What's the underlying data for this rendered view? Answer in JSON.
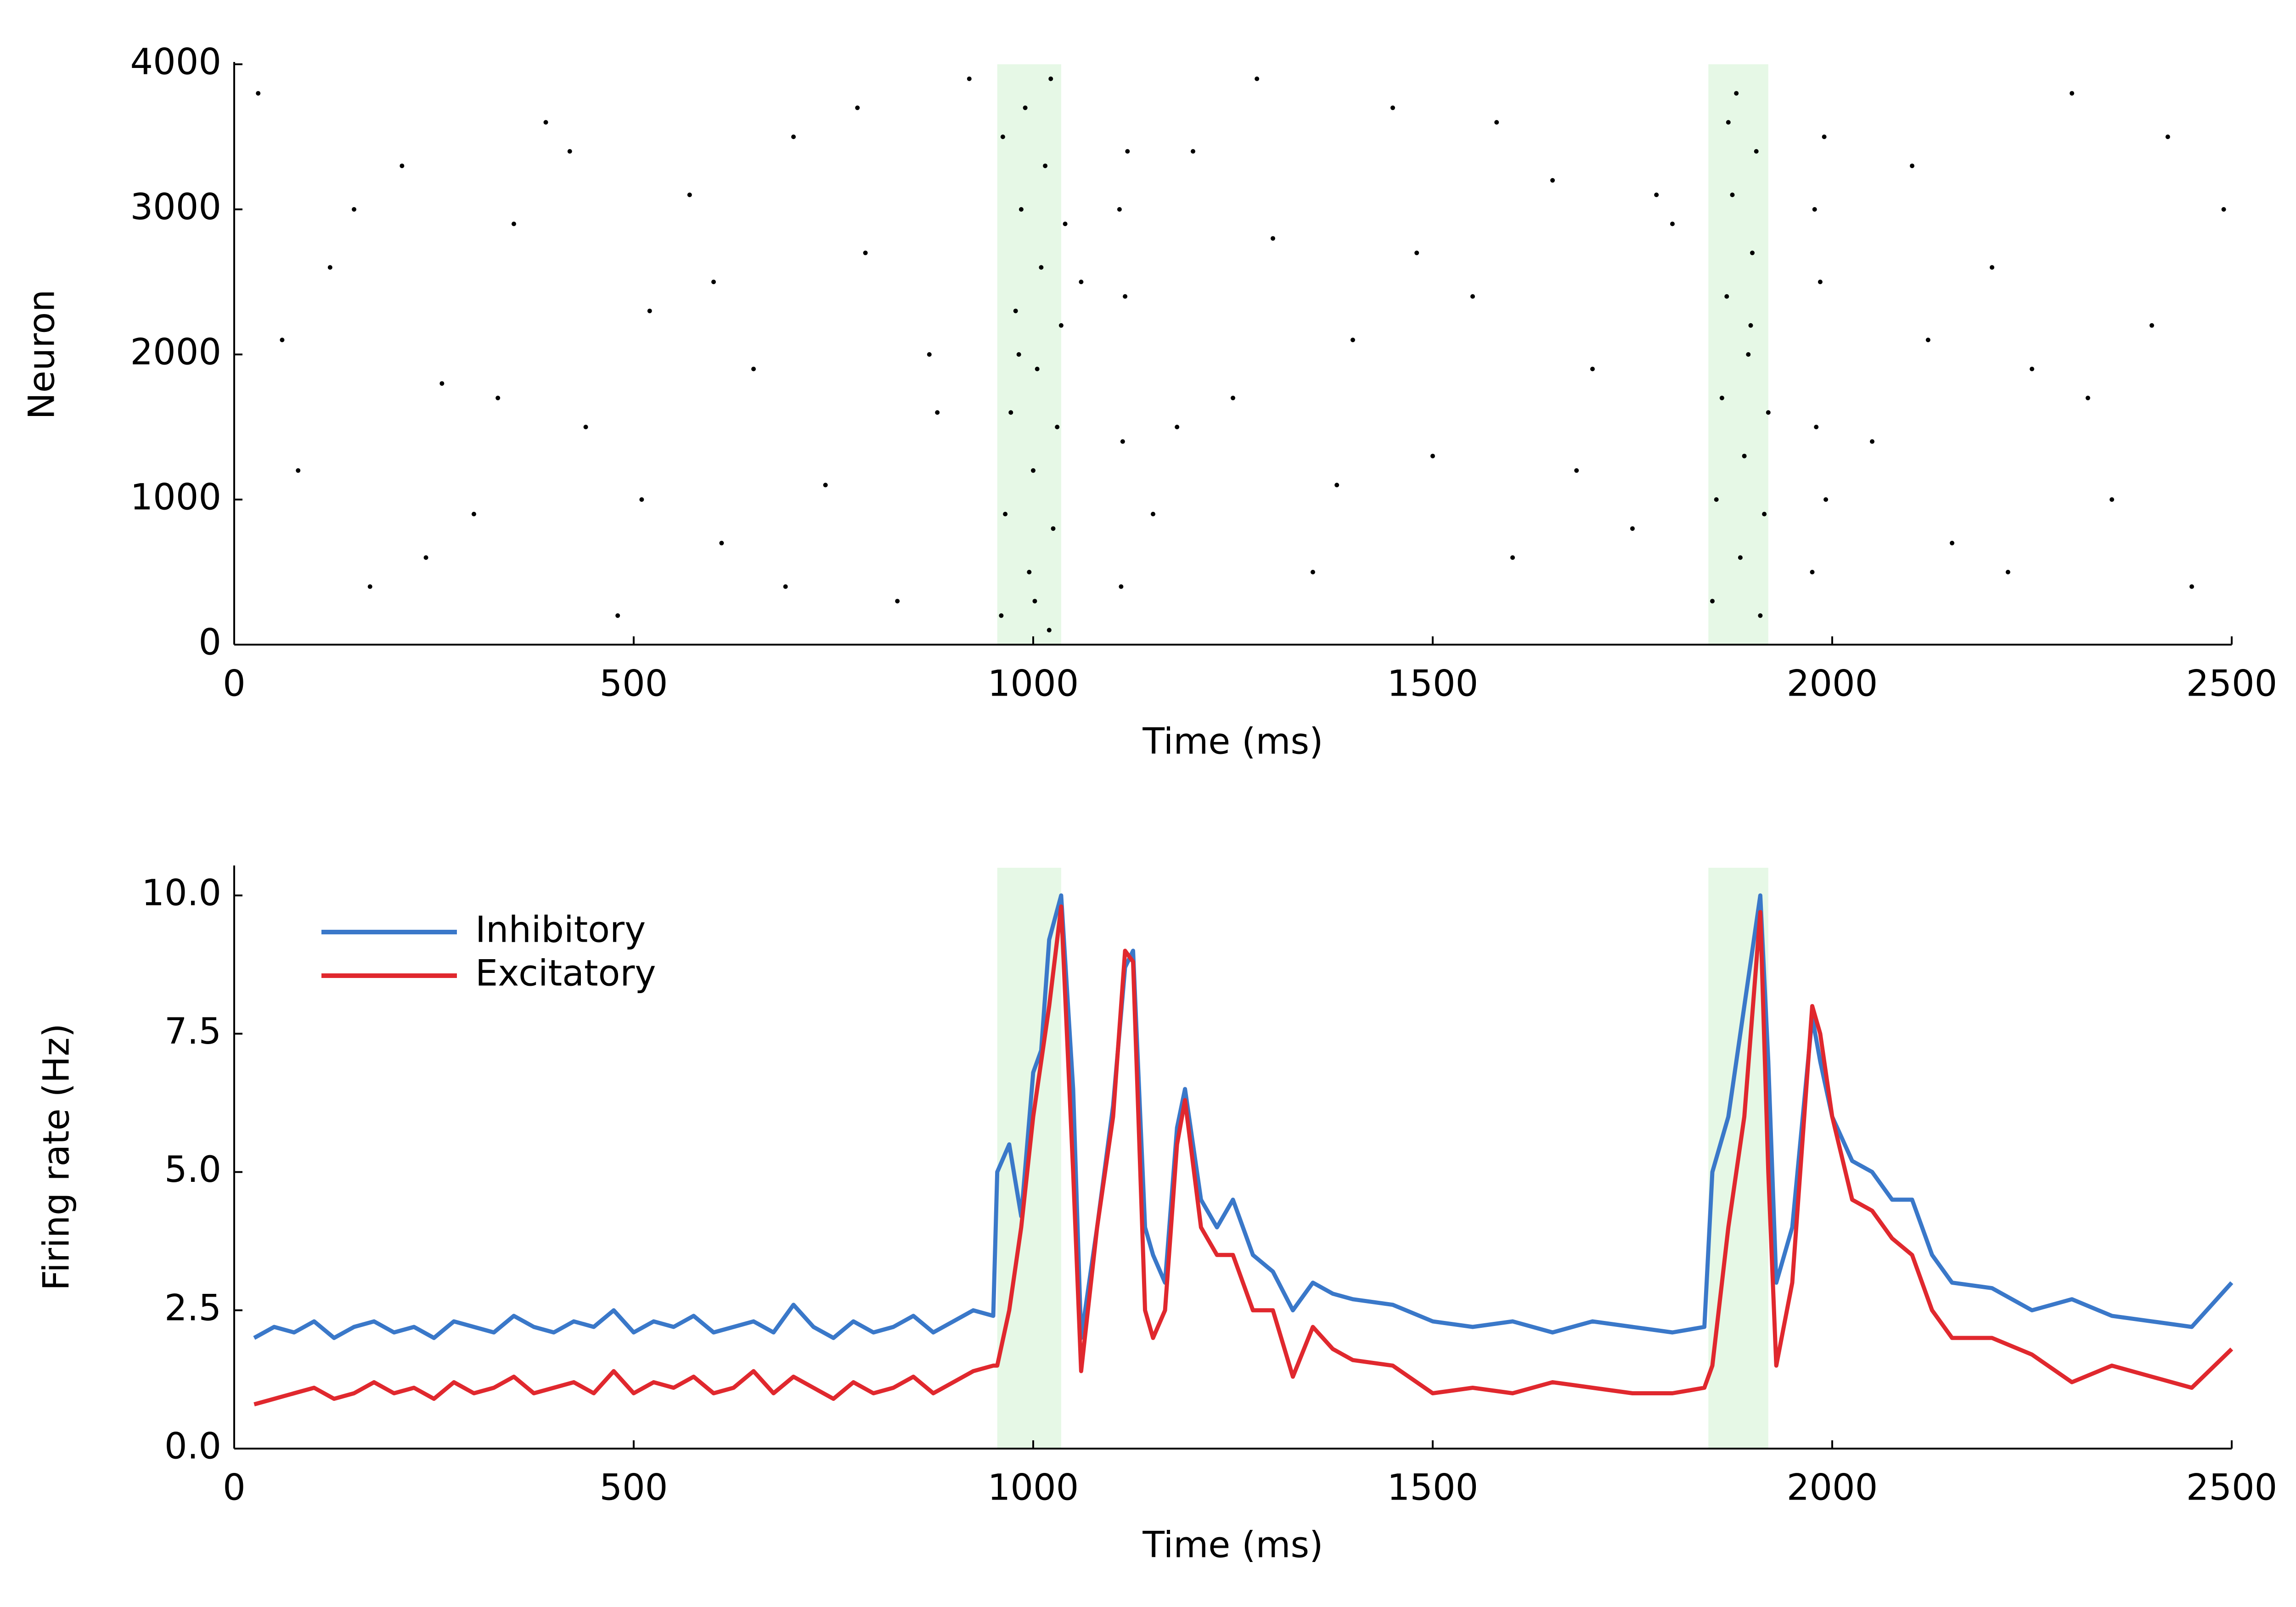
{
  "chart_data": [
    {
      "type": "scatter",
      "xlabel": "Time (ms)",
      "ylabel": "Neuron",
      "color": "#000000",
      "xlim": [
        0,
        2500
      ],
      "ylim": [
        0,
        4000
      ],
      "xticks": [
        0,
        500,
        1000,
        1500,
        2000,
        2500
      ],
      "yticks": [
        0,
        1000,
        2000,
        3000,
        4000
      ],
      "highlight_spans": [
        [
          955,
          1035
        ],
        [
          1845,
          1920
        ]
      ],
      "highlight_color": "#e6f8e6",
      "x": [
        30,
        80,
        120,
        170,
        210,
        260,
        300,
        350,
        390,
        440,
        480,
        520,
        570,
        610,
        650,
        700,
        740,
        790,
        830,
        880,
        920,
        1060,
        1150,
        1200,
        1250,
        1300,
        1350,
        1400,
        1450,
        1500,
        1550,
        1600,
        1650,
        1700,
        1750,
        1800,
        2050,
        2100,
        2150,
        2200,
        2250,
        2300,
        2350,
        2400,
        2450,
        2490,
        60,
        150,
        240,
        330,
        420,
        510,
        600,
        690,
        780,
        870,
        1180,
        1280,
        1380,
        1480,
        1580,
        1680,
        1780,
        2120,
        2220,
        2320,
        2420,
        960,
        965,
        972,
        978,
        985,
        990,
        995,
        1000,
        1005,
        1010,
        1015,
        1020,
        1025,
        1030,
        1035,
        1040,
        962,
        982,
        1002,
        1022,
        1110,
        1112,
        1115,
        1118,
        1108,
        1850,
        1855,
        1862,
        1868,
        1875,
        1880,
        1885,
        1890,
        1895,
        1900,
        1905,
        1910,
        1915,
        1920,
        1870,
        1898,
        1975,
        1980,
        1985,
        1990,
        1978,
        1992
      ],
      "y": [
        3800,
        1200,
        2600,
        400,
        3300,
        1800,
        900,
        2900,
        3600,
        1500,
        200,
        2300,
        3100,
        700,
        1900,
        3500,
        1100,
        2700,
        300,
        1600,
        3900,
        2500,
        900,
        3400,
        1700,
        2800,
        500,
        2100,
        3700,
        1300,
        2400,
        600,
        3200,
        1900,
        800,
        2900,
        1400,
        3300,
        700,
        2600,
        1900,
        3800,
        1000,
        2200,
        400,
        3000,
        2100,
        3000,
        600,
        1700,
        3400,
        1000,
        2500,
        400,
        3700,
        2000,
        1500,
        3900,
        1100,
        2700,
        3600,
        1200,
        3100,
        2100,
        500,
        1700,
        3500,
        200,
        900,
        1600,
        2300,
        3000,
        3700,
        500,
        1200,
        1900,
        2600,
        3300,
        100,
        800,
        1500,
        2200,
        2900,
        3500,
        2000,
        300,
        3900,
        400,
        1400,
        2400,
        3400,
        3000,
        300,
        1000,
        1700,
        2400,
        3100,
        3800,
        600,
        1300,
        2000,
        2700,
        3400,
        200,
        900,
        1600,
        3600,
        2200,
        500,
        1500,
        2500,
        3500,
        3000,
        1000
      ]
    },
    {
      "type": "line",
      "xlabel": "Time (ms)",
      "ylabel": "Firing rate (Hz)",
      "legend": "upper left",
      "xlim": [
        0,
        2500
      ],
      "ylim": [
        0,
        10.5
      ],
      "xticks": [
        0,
        500,
        1000,
        1500,
        2000,
        2500
      ],
      "yticks": [
        {
          "value": 0,
          "label": "0.0"
        },
        2.5,
        {
          "value": 5,
          "label": "5.0"
        },
        7.5,
        {
          "value": 10,
          "label": "10.0"
        }
      ],
      "highlight_spans": [
        [
          955,
          1035
        ],
        [
          1845,
          1920
        ]
      ],
      "highlight_color": "#e6f8e6",
      "x": [
        25,
        50,
        75,
        100,
        125,
        150,
        175,
        200,
        225,
        250,
        275,
        300,
        325,
        350,
        375,
        400,
        425,
        450,
        475,
        500,
        525,
        550,
        575,
        600,
        625,
        650,
        675,
        700,
        725,
        750,
        775,
        800,
        825,
        850,
        875,
        900,
        925,
        950,
        955,
        970,
        985,
        1000,
        1010,
        1020,
        1035,
        1050,
        1060,
        1080,
        1100,
        1115,
        1125,
        1140,
        1150,
        1165,
        1180,
        1190,
        1210,
        1230,
        1250,
        1275,
        1300,
        1325,
        1350,
        1375,
        1400,
        1450,
        1500,
        1550,
        1600,
        1650,
        1700,
        1750,
        1800,
        1840,
        1850,
        1870,
        1890,
        1910,
        1920,
        1930,
        1950,
        1975,
        1985,
        2000,
        2025,
        2050,
        2075,
        2100,
        2125,
        2150,
        2200,
        2250,
        2300,
        2350,
        2400,
        2450,
        2500
      ],
      "series": [
        {
          "name": "Inhibitory",
          "color": "#3a78c9",
          "values": [
            2.0,
            2.2,
            2.1,
            2.3,
            2.0,
            2.2,
            2.3,
            2.1,
            2.2,
            2.0,
            2.3,
            2.2,
            2.1,
            2.4,
            2.2,
            2.1,
            2.3,
            2.2,
            2.5,
            2.1,
            2.3,
            2.2,
            2.4,
            2.1,
            2.2,
            2.3,
            2.1,
            2.6,
            2.2,
            2.0,
            2.3,
            2.1,
            2.2,
            2.4,
            2.1,
            2.3,
            2.5,
            2.4,
            5.0,
            5.5,
            4.2,
            6.8,
            7.2,
            9.2,
            10.0,
            6.5,
            2.0,
            4.0,
            6.2,
            8.7,
            9.0,
            4.0,
            3.5,
            3.0,
            5.8,
            6.5,
            4.5,
            4.0,
            4.5,
            3.5,
            3.2,
            2.5,
            3.0,
            2.8,
            2.7,
            2.6,
            2.3,
            2.2,
            2.3,
            2.1,
            2.3,
            2.2,
            2.1,
            2.2,
            5.0,
            6.0,
            8.0,
            10.0,
            7.0,
            3.0,
            4.0,
            7.8,
            7.0,
            6.0,
            5.2,
            5.0,
            4.5,
            4.5,
            3.5,
            3.0,
            2.9,
            2.5,
            2.7,
            2.4,
            2.3,
            2.2,
            3.0
          ]
        },
        {
          "name": "Excitatory",
          "color": "#e0282e",
          "values": [
            0.8,
            0.9,
            1.0,
            1.1,
            0.9,
            1.0,
            1.2,
            1.0,
            1.1,
            0.9,
            1.2,
            1.0,
            1.1,
            1.3,
            1.0,
            1.1,
            1.2,
            1.0,
            1.4,
            1.0,
            1.2,
            1.1,
            1.3,
            1.0,
            1.1,
            1.4,
            1.0,
            1.3,
            1.1,
            0.9,
            1.2,
            1.0,
            1.1,
            1.3,
            1.0,
            1.2,
            1.4,
            1.5,
            1.5,
            2.5,
            4.0,
            6.0,
            7.0,
            8.0,
            9.8,
            5.0,
            1.4,
            4.0,
            6.0,
            9.0,
            8.8,
            2.5,
            2.0,
            2.5,
            5.5,
            6.3,
            4.0,
            3.5,
            3.5,
            2.5,
            2.5,
            1.3,
            2.2,
            1.8,
            1.6,
            1.5,
            1.0,
            1.1,
            1.0,
            1.2,
            1.1,
            1.0,
            1.0,
            1.1,
            1.5,
            4.0,
            6.0,
            9.7,
            5.0,
            1.5,
            3.0,
            8.0,
            7.5,
            6.0,
            4.5,
            4.3,
            3.8,
            3.5,
            2.5,
            2.0,
            2.0,
            1.7,
            1.2,
            1.5,
            1.3,
            1.1,
            1.8
          ]
        }
      ]
    }
  ]
}
